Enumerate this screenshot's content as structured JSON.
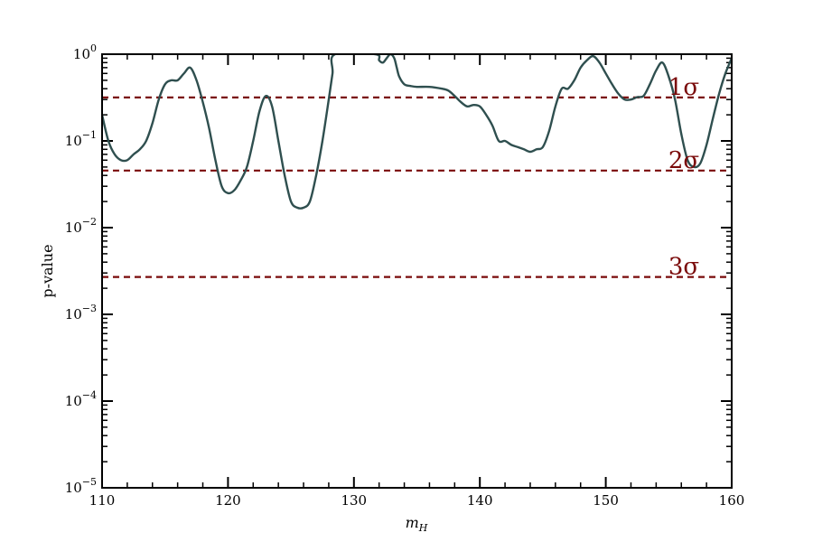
{
  "chart_data": {
    "type": "line",
    "title": "",
    "xlabel_base": "m",
    "xlabel_sub": "H",
    "ylabel": "p-value",
    "xlim": [
      110,
      160
    ],
    "ylim": [
      1e-05,
      1
    ],
    "yscale": "log",
    "grid": false,
    "x_ticks": [
      {
        "value": 110,
        "label": "110"
      },
      {
        "value": 120,
        "label": "120"
      },
      {
        "value": 130,
        "label": "130"
      },
      {
        "value": 140,
        "label": "140"
      },
      {
        "value": 150,
        "label": "150"
      },
      {
        "value": 160,
        "label": "160"
      }
    ],
    "y_ticks": [
      {
        "value": 1,
        "base": "10",
        "exp": "0"
      },
      {
        "value": 0.1,
        "base": "10",
        "exp": "−1"
      },
      {
        "value": 0.01,
        "base": "10",
        "exp": "−2"
      },
      {
        "value": 0.001,
        "base": "10",
        "exp": "−3"
      },
      {
        "value": 0.0001,
        "base": "10",
        "exp": "−4"
      },
      {
        "value": 1e-05,
        "base": "10",
        "exp": "−5"
      }
    ],
    "series": [
      {
        "color": "#2f4f4f",
        "x": [
          110,
          110.5,
          111,
          111.5,
          112,
          112.5,
          113,
          113.5,
          114,
          114.5,
          115,
          115.5,
          116,
          116.5,
          117,
          117.5,
          118,
          118.5,
          119,
          119.5,
          120,
          120.5,
          121,
          121.5,
          122,
          122.5,
          123,
          123.5,
          124,
          124.5,
          125,
          125.5,
          126,
          126.5,
          127,
          127.5,
          128,
          128.3,
          128.5,
          131.7,
          132,
          132.3,
          132.6,
          132.9,
          133.2,
          133.4,
          133.6,
          134,
          134.5,
          135,
          136,
          137,
          137.5,
          138,
          138.5,
          139,
          139.5,
          140,
          140.5,
          141,
          141.5,
          142,
          142.5,
          143,
          143.5,
          144,
          144.5,
          145,
          145.5,
          146,
          146.5,
          147,
          147.5,
          148,
          148.5,
          149,
          149.5,
          150,
          150.5,
          151,
          151.5,
          152,
          152.5,
          153,
          153.5,
          154,
          154.5,
          155,
          155.5,
          156,
          156.5,
          157,
          157.5,
          158,
          158.5,
          159,
          159.5,
          160
        ],
        "y": [
          0.2,
          0.1,
          0.07,
          0.06,
          0.06,
          0.07,
          0.08,
          0.1,
          0.16,
          0.3,
          0.45,
          0.5,
          0.5,
          0.6,
          0.7,
          0.5,
          0.28,
          0.14,
          0.06,
          0.03,
          0.025,
          0.027,
          0.035,
          0.05,
          0.1,
          0.22,
          0.33,
          0.25,
          0.1,
          0.04,
          0.02,
          0.017,
          0.017,
          0.02,
          0.04,
          0.1,
          0.3,
          0.6,
          1.0,
          1.0,
          0.85,
          0.8,
          0.9,
          1.0,
          0.9,
          0.7,
          0.55,
          0.45,
          0.43,
          0.42,
          0.42,
          0.4,
          0.38,
          0.33,
          0.28,
          0.25,
          0.26,
          0.25,
          0.2,
          0.15,
          0.1,
          0.1,
          0.09,
          0.085,
          0.08,
          0.075,
          0.08,
          0.085,
          0.13,
          0.25,
          0.4,
          0.4,
          0.5,
          0.7,
          0.85,
          0.95,
          0.8,
          0.6,
          0.45,
          0.35,
          0.3,
          0.3,
          0.32,
          0.33,
          0.45,
          0.65,
          0.8,
          0.55,
          0.3,
          0.12,
          0.06,
          0.05,
          0.055,
          0.09,
          0.18,
          0.35,
          0.6,
          0.9
        ]
      }
    ],
    "significance_lines": [
      {
        "value": 0.3173,
        "label": "1σ"
      },
      {
        "value": 0.0455,
        "label": "2σ"
      },
      {
        "value": 0.0027,
        "label": "3σ"
      }
    ],
    "significance_color": "#7a0a0a"
  }
}
